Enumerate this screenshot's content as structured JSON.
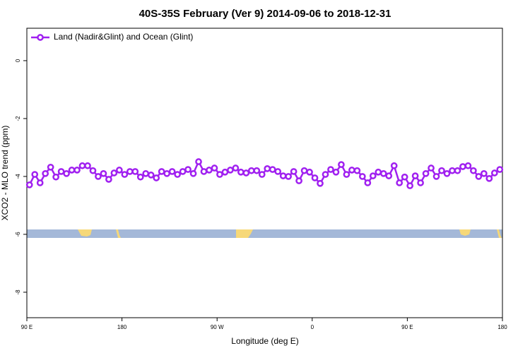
{
  "chart_data": {
    "type": "line",
    "title": "40S-35S February (Ver 9)   2014-09-06 to 2018-12-31",
    "x_label": "Longitude (deg E)",
    "y_label": "XCO2 - MLO trend (ppm)",
    "series": [
      {
        "name": "Land (Nadir&Glint) and Ocean (Glint)",
        "color": "#a020f0",
        "x": [
          92.5,
          97.5,
          102.5,
          107.5,
          112.5,
          117.5,
          122.5,
          127.5,
          132.5,
          137.5,
          142.5,
          147.5,
          152.5,
          157.5,
          162.5,
          167.5,
          172.5,
          177.5,
          182.5,
          187.5,
          192.5,
          197.5,
          202.5,
          207.5,
          212.5,
          217.5,
          222.5,
          227.5,
          232.5,
          237.5,
          242.5,
          247.5,
          252.5,
          257.5,
          262.5,
          267.5,
          272.5,
          277.5,
          282.5,
          287.5,
          292.5,
          297.5,
          302.5,
          307.5,
          312.5,
          317.5,
          322.5,
          327.5,
          332.5,
          337.5,
          342.5,
          347.5,
          352.5,
          357.5,
          362.5,
          367.5,
          372.5,
          377.5,
          382.5,
          387.5,
          392.5,
          397.5,
          402.5,
          407.5,
          412.5,
          417.5,
          422.5,
          427.5,
          432.5,
          437.5,
          442.5,
          447.5,
          452.5,
          457.5,
          462.5,
          467.5,
          472.5,
          477.5,
          482.5,
          487.5,
          492.5,
          497.5,
          502.5,
          507.5,
          512.5,
          517.5,
          522.5,
          527.5,
          532.5,
          537.5
        ],
        "values": [
          -4.29,
          -3.93,
          -4.22,
          -3.9,
          -3.68,
          -4.02,
          -3.83,
          -3.9,
          -3.78,
          -3.78,
          -3.63,
          -3.63,
          -3.8,
          -4.0,
          -3.9,
          -4.1,
          -3.88,
          -3.78,
          -3.93,
          -3.83,
          -3.83,
          -4.02,
          -3.9,
          -3.95,
          -4.05,
          -3.83,
          -3.9,
          -3.83,
          -3.93,
          -3.83,
          -3.76,
          -3.9,
          -3.49,
          -3.83,
          -3.78,
          -3.71,
          -3.93,
          -3.85,
          -3.78,
          -3.71,
          -3.85,
          -3.88,
          -3.8,
          -3.8,
          -3.93,
          -3.73,
          -3.76,
          -3.83,
          -3.98,
          -4.0,
          -3.83,
          -4.15,
          -3.8,
          -3.85,
          -4.05,
          -4.24,
          -3.93,
          -3.76,
          -3.85,
          -3.59,
          -3.93,
          -3.78,
          -3.8,
          -4.0,
          -4.22,
          -3.98,
          -3.85,
          -3.9,
          -3.98,
          -3.63,
          -4.22,
          -4.02,
          -4.32,
          -3.98,
          -4.22,
          -3.9,
          -3.71,
          -4.0,
          -3.8,
          -3.9,
          -3.8,
          -3.8,
          -3.66,
          -3.63,
          -3.8,
          -4.0,
          -3.9,
          -4.07,
          -3.88,
          -3.76
        ]
      }
    ],
    "xlim": [
      90,
      540
    ],
    "xticks": [
      {
        "value": 90,
        "label": "90 E"
      },
      180,
      {
        "value": 270,
        "label": "90 W"
      },
      {
        "value": 360,
        "label": "0"
      },
      {
        "value": 450,
        "label": "90 E"
      },
      {
        "value": 540,
        "label": "180"
      }
    ],
    "ylim": [
      -8.88,
      1.12
    ],
    "yticks": [
      0,
      -2,
      -4,
      -6,
      -8
    ],
    "legend": "top-left"
  }
}
